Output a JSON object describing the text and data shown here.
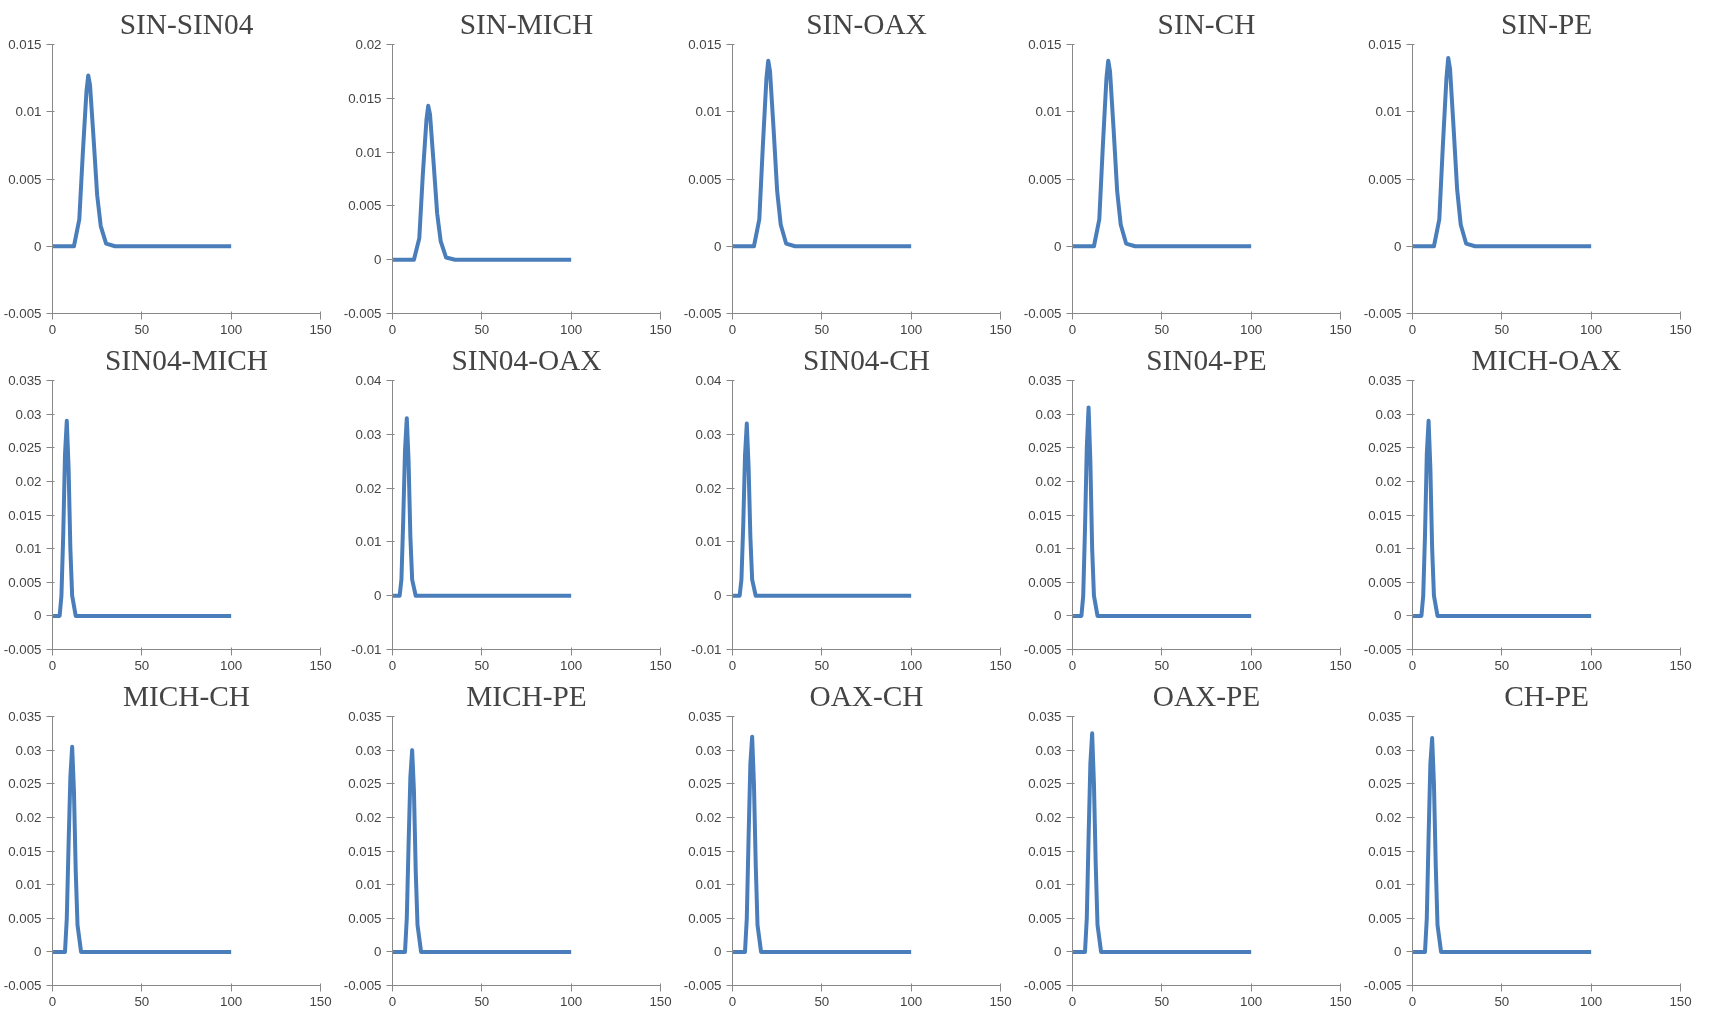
{
  "chart_data": [
    {
      "type": "line",
      "title": "SIN-SIN04",
      "x": [
        0,
        12,
        15,
        17,
        19,
        20,
        21,
        23,
        25,
        27,
        30,
        35,
        100
      ],
      "values": [
        0,
        0,
        0.002,
        0.007,
        0.0115,
        0.0127,
        0.012,
        0.008,
        0.0038,
        0.0015,
        0.0002,
        0,
        0
      ],
      "color": "#4a7ebb",
      "xlim": [
        0,
        150
      ],
      "xticks": [
        0,
        50,
        100,
        150
      ],
      "ylim": [
        -0.005,
        0.015
      ],
      "yticks": [
        -0.005,
        0,
        0.005,
        0.01,
        0.015
      ],
      "grid": false,
      "line_style": "solid",
      "marker": "none"
    },
    {
      "type": "line",
      "title": "SIN-MICH",
      "x": [
        0,
        12,
        15,
        17,
        19,
        20,
        21,
        23,
        25,
        27,
        30,
        35,
        100
      ],
      "values": [
        0,
        0,
        0.002,
        0.008,
        0.013,
        0.0143,
        0.0135,
        0.009,
        0.0043,
        0.0017,
        0.0002,
        0,
        0
      ],
      "color": "#4a7ebb",
      "xlim": [
        0,
        150
      ],
      "xticks": [
        0,
        50,
        100,
        150
      ],
      "ylim": [
        -0.005,
        0.02
      ],
      "yticks": [
        -0.005,
        0,
        0.005,
        0.01,
        0.015,
        0.02
      ],
      "grid": false,
      "line_style": "solid",
      "marker": "none"
    },
    {
      "type": "line",
      "title": "SIN-OAX",
      "x": [
        0,
        12,
        15,
        17,
        19,
        20,
        21,
        23,
        25,
        27,
        30,
        35,
        100
      ],
      "values": [
        0,
        0,
        0.002,
        0.0075,
        0.0125,
        0.0138,
        0.013,
        0.0087,
        0.0041,
        0.0016,
        0.0002,
        0,
        0
      ],
      "color": "#4a7ebb",
      "xlim": [
        0,
        150
      ],
      "xticks": [
        0,
        50,
        100,
        150
      ],
      "ylim": [
        -0.005,
        0.015
      ],
      "yticks": [
        -0.005,
        0,
        0.005,
        0.01,
        0.015
      ],
      "grid": false,
      "line_style": "solid",
      "marker": "none"
    },
    {
      "type": "line",
      "title": "SIN-CH",
      "x": [
        0,
        12,
        15,
        17,
        19,
        20,
        21,
        23,
        25,
        27,
        30,
        35,
        100
      ],
      "values": [
        0,
        0,
        0.002,
        0.0075,
        0.0125,
        0.0138,
        0.013,
        0.0087,
        0.0041,
        0.0016,
        0.0002,
        0,
        0
      ],
      "color": "#4a7ebb",
      "xlim": [
        0,
        150
      ],
      "xticks": [
        0,
        50,
        100,
        150
      ],
      "ylim": [
        -0.005,
        0.015
      ],
      "yticks": [
        -0.005,
        0,
        0.005,
        0.01,
        0.015
      ],
      "grid": false,
      "line_style": "solid",
      "marker": "none"
    },
    {
      "type": "line",
      "title": "SIN-PE",
      "x": [
        0,
        12,
        15,
        17,
        19,
        20,
        21,
        23,
        25,
        27,
        30,
        35,
        100
      ],
      "values": [
        0,
        0,
        0.002,
        0.0075,
        0.0125,
        0.014,
        0.0132,
        0.0088,
        0.0042,
        0.0016,
        0.0002,
        0,
        0
      ],
      "color": "#4a7ebb",
      "xlim": [
        0,
        150
      ],
      "xticks": [
        0,
        50,
        100,
        150
      ],
      "ylim": [
        -0.005,
        0.015
      ],
      "yticks": [
        -0.005,
        0,
        0.005,
        0.01,
        0.015
      ],
      "grid": false,
      "line_style": "solid",
      "marker": "none"
    },
    {
      "type": "line",
      "title": "SIN04-MICH",
      "x": [
        0,
        4,
        5,
        6,
        7,
        8,
        9,
        10,
        11,
        13,
        100
      ],
      "values": [
        0,
        0,
        0.003,
        0.012,
        0.024,
        0.029,
        0.022,
        0.01,
        0.003,
        0,
        0
      ],
      "color": "#4a7ebb",
      "xlim": [
        0,
        150
      ],
      "xticks": [
        0,
        50,
        100,
        150
      ],
      "ylim": [
        -0.005,
        0.035
      ],
      "yticks": [
        -0.005,
        0,
        0.005,
        0.01,
        0.015,
        0.02,
        0.025,
        0.03,
        0.035
      ],
      "grid": false,
      "line_style": "solid",
      "marker": "none"
    },
    {
      "type": "line",
      "title": "SIN04-OAX",
      "x": [
        0,
        4,
        5,
        6,
        7,
        8,
        9,
        10,
        11,
        13,
        100
      ],
      "values": [
        0,
        0,
        0.003,
        0.014,
        0.027,
        0.033,
        0.025,
        0.011,
        0.003,
        0,
        0
      ],
      "color": "#4a7ebb",
      "xlim": [
        0,
        150
      ],
      "xticks": [
        0,
        50,
        100,
        150
      ],
      "ylim": [
        -0.01,
        0.04
      ],
      "yticks": [
        -0.01,
        0,
        0.01,
        0.02,
        0.03,
        0.04
      ],
      "grid": false,
      "line_style": "solid",
      "marker": "none"
    },
    {
      "type": "line",
      "title": "SIN04-CH",
      "x": [
        0,
        4,
        5,
        6,
        7,
        8,
        9,
        10,
        11,
        13,
        100
      ],
      "values": [
        0,
        0,
        0.003,
        0.013,
        0.026,
        0.032,
        0.024,
        0.011,
        0.003,
        0,
        0
      ],
      "color": "#4a7ebb",
      "xlim": [
        0,
        150
      ],
      "xticks": [
        0,
        50,
        100,
        150
      ],
      "ylim": [
        -0.01,
        0.04
      ],
      "yticks": [
        -0.01,
        0,
        0.01,
        0.02,
        0.03,
        0.04
      ],
      "grid": false,
      "line_style": "solid",
      "marker": "none"
    },
    {
      "type": "line",
      "title": "SIN04-PE",
      "x": [
        0,
        5,
        6,
        7,
        8,
        9,
        10,
        11,
        12,
        14,
        100
      ],
      "values": [
        0,
        0,
        0.003,
        0.013,
        0.025,
        0.031,
        0.023,
        0.01,
        0.003,
        0,
        0
      ],
      "color": "#4a7ebb",
      "xlim": [
        0,
        150
      ],
      "xticks": [
        0,
        50,
        100,
        150
      ],
      "ylim": [
        -0.005,
        0.035
      ],
      "yticks": [
        -0.005,
        0,
        0.005,
        0.01,
        0.015,
        0.02,
        0.025,
        0.03,
        0.035
      ],
      "grid": false,
      "line_style": "solid",
      "marker": "none"
    },
    {
      "type": "line",
      "title": "MICH-OAX",
      "x": [
        0,
        5,
        6,
        7,
        8,
        9,
        10,
        11,
        12,
        14,
        100
      ],
      "values": [
        0,
        0,
        0.003,
        0.012,
        0.024,
        0.029,
        0.022,
        0.01,
        0.003,
        0,
        0
      ],
      "color": "#4a7ebb",
      "xlim": [
        0,
        150
      ],
      "xticks": [
        0,
        50,
        100,
        150
      ],
      "ylim": [
        -0.005,
        0.035
      ],
      "yticks": [
        -0.005,
        0,
        0.005,
        0.01,
        0.015,
        0.02,
        0.025,
        0.03,
        0.035
      ],
      "grid": false,
      "line_style": "solid",
      "marker": "none"
    },
    {
      "type": "line",
      "title": "MICH-CH",
      "x": [
        0,
        7,
        8,
        9,
        10,
        11,
        12,
        13,
        14,
        16,
        100
      ],
      "values": [
        0,
        0,
        0.005,
        0.016,
        0.026,
        0.0305,
        0.024,
        0.012,
        0.004,
        0,
        0
      ],
      "color": "#4a7ebb",
      "xlim": [
        0,
        150
      ],
      "xticks": [
        0,
        50,
        100,
        150
      ],
      "ylim": [
        -0.005,
        0.035
      ],
      "yticks": [
        -0.005,
        0,
        0.005,
        0.01,
        0.015,
        0.02,
        0.025,
        0.03,
        0.035
      ],
      "grid": false,
      "line_style": "solid",
      "marker": "none"
    },
    {
      "type": "line",
      "title": "MICH-PE",
      "x": [
        0,
        7,
        8,
        9,
        10,
        11,
        12,
        13,
        14,
        16,
        100
      ],
      "values": [
        0,
        0,
        0.005,
        0.016,
        0.026,
        0.03,
        0.024,
        0.012,
        0.004,
        0,
        0
      ],
      "color": "#4a7ebb",
      "xlim": [
        0,
        150
      ],
      "xticks": [
        0,
        50,
        100,
        150
      ],
      "ylim": [
        -0.005,
        0.035
      ],
      "yticks": [
        -0.005,
        0,
        0.005,
        0.01,
        0.015,
        0.02,
        0.025,
        0.03,
        0.035
      ],
      "grid": false,
      "line_style": "solid",
      "marker": "none"
    },
    {
      "type": "line",
      "title": "OAX-CH",
      "x": [
        0,
        7,
        8,
        9,
        10,
        11,
        12,
        13,
        14,
        16,
        100
      ],
      "values": [
        0,
        0,
        0.005,
        0.017,
        0.028,
        0.032,
        0.025,
        0.013,
        0.004,
        0,
        0
      ],
      "color": "#4a7ebb",
      "xlim": [
        0,
        150
      ],
      "xticks": [
        0,
        50,
        100,
        150
      ],
      "ylim": [
        -0.005,
        0.035
      ],
      "yticks": [
        -0.005,
        0,
        0.005,
        0.01,
        0.015,
        0.02,
        0.025,
        0.03,
        0.035
      ],
      "grid": false,
      "line_style": "solid",
      "marker": "none"
    },
    {
      "type": "line",
      "title": "OAX-PE",
      "x": [
        0,
        7,
        8,
        9,
        10,
        11,
        12,
        13,
        14,
        16,
        100
      ],
      "values": [
        0,
        0,
        0.005,
        0.017,
        0.028,
        0.0325,
        0.025,
        0.013,
        0.004,
        0,
        0
      ],
      "color": "#4a7ebb",
      "xlim": [
        0,
        150
      ],
      "xticks": [
        0,
        50,
        100,
        150
      ],
      "ylim": [
        -0.005,
        0.035
      ],
      "yticks": [
        -0.005,
        0,
        0.005,
        0.01,
        0.015,
        0.02,
        0.025,
        0.03,
        0.035
      ],
      "grid": false,
      "line_style": "solid",
      "marker": "none"
    },
    {
      "type": "line",
      "title": "CH-PE",
      "x": [
        0,
        7,
        8,
        9,
        10,
        11,
        12,
        13,
        14,
        16,
        100
      ],
      "values": [
        0,
        0,
        0.005,
        0.017,
        0.028,
        0.0318,
        0.025,
        0.013,
        0.004,
        0,
        0
      ],
      "color": "#4a7ebb",
      "xlim": [
        0,
        150
      ],
      "xticks": [
        0,
        50,
        100,
        150
      ],
      "ylim": [
        -0.005,
        0.035
      ],
      "yticks": [
        -0.005,
        0,
        0.005,
        0.01,
        0.015,
        0.02,
        0.025,
        0.03,
        0.035
      ],
      "grid": false,
      "line_style": "solid",
      "marker": "none"
    }
  ]
}
